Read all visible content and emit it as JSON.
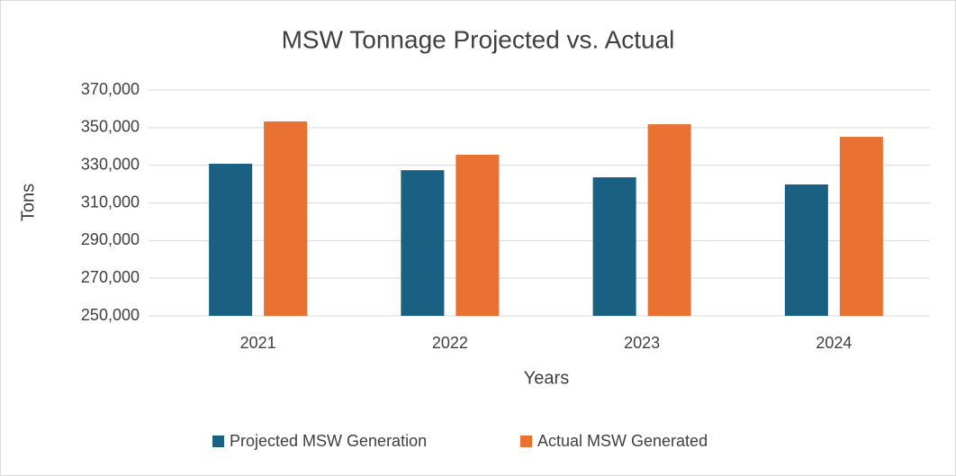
{
  "chart_data": {
    "type": "bar",
    "title": "MSW Tonnage Projected vs. Actual",
    "x_label": "Years",
    "y_label": "Tons",
    "categories": [
      "2021",
      "2022",
      "2023",
      "2024"
    ],
    "series": [
      {
        "name": "Projected MSW Generation",
        "color": "#196083",
        "values": [
          330800,
          327400,
          323600,
          319800
        ]
      },
      {
        "name": "Actual MSW Generated",
        "color": "#e97132",
        "values": [
          353300,
          335600,
          351800,
          345100
        ]
      }
    ],
    "ylim": [
      250000,
      370000
    ],
    "yticks": [
      {
        "value": 250000,
        "label": "250,000"
      },
      {
        "value": 270000,
        "label": "270,000"
      },
      {
        "value": 290000,
        "label": "290,000"
      },
      {
        "value": 310000,
        "label": "310,000"
      },
      {
        "value": 330000,
        "label": "330,000"
      },
      {
        "value": 350000,
        "label": "350,000"
      },
      {
        "value": 370000,
        "label": "370,000"
      }
    ],
    "grid": true,
    "legend": "bottom"
  }
}
